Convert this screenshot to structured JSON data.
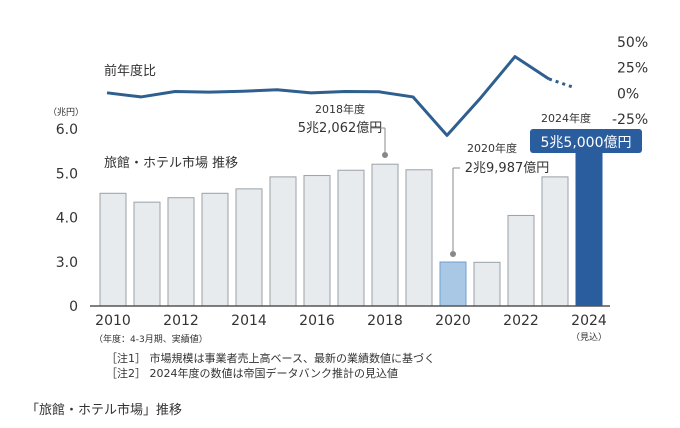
{
  "chart_data": {
    "type": "bar",
    "title": "旅館・ホテル市場 推移",
    "unit_label": "（兆円）",
    "x": [
      2010,
      2011,
      2012,
      2013,
      2014,
      2015,
      2016,
      2017,
      2018,
      2019,
      2020,
      2021,
      2022,
      2023,
      2024
    ],
    "x_tick_labels": [
      "2010",
      "2012",
      "2014",
      "2016",
      "2018",
      "2020",
      "2022",
      "2024"
    ],
    "x_tick_years": [
      2010,
      2012,
      2014,
      2016,
      2018,
      2020,
      2022,
      2024
    ],
    "x_note": "（年度：4-3月期、実績値）",
    "x_note_2024": "（見込）",
    "values": [
      4.55,
      4.35,
      4.45,
      4.55,
      4.65,
      4.92,
      4.95,
      5.07,
      5.2062,
      5.08,
      2.9987,
      2.98,
      4.05,
      4.92,
      5.5
    ],
    "bar_kind": [
      "actual",
      "actual",
      "actual",
      "actual",
      "actual",
      "actual",
      "actual",
      "actual",
      "actual",
      "actual",
      "highlight",
      "actual",
      "actual",
      "actual",
      "forecast"
    ],
    "colors": {
      "actual_fill": "#e8ebee",
      "actual_stroke": "#9aa1a8",
      "highlight_fill": "#a8c8e6",
      "highlight_stroke": "#6f9fcf",
      "forecast_fill": "#2a5d9e",
      "line": "#2e5f8f",
      "badge": "#2a5d9e"
    },
    "ylim": [
      0,
      6.0
    ],
    "y_ticks": [
      "0",
      "3.0",
      "4.0",
      "5.0",
      "6.0"
    ],
    "y_tick_values": [
      0,
      3.0,
      4.0,
      5.0,
      6.0
    ],
    "yoy": {
      "label": "前年度比",
      "values": [
        0.5,
        -3.5,
        1.8,
        1.2,
        2.0,
        3.5,
        0.5,
        1.8,
        1.5,
        -3.5,
        -41.0,
        -4.0,
        35.8,
        14.0,
        6.0
      ],
      "forecast_from_index": 13,
      "ylim": [
        -25,
        50
      ],
      "ticks": [
        "50%",
        "25%",
        "0%",
        "-25%"
      ],
      "tick_values": [
        50,
        25,
        0,
        -25
      ]
    },
    "annotations": {
      "a2018": {
        "year_label": "2018年度",
        "value_label": "5兆2,062億円",
        "year": 2018
      },
      "a2020": {
        "year_label": "2020年度",
        "value_label": "2兆9,987億円",
        "year": 2020
      },
      "a2024": {
        "year_label": "2024年度",
        "value_label": "5兆5,000億円",
        "year": 2024
      }
    },
    "notes": [
      "［注1］ 市場規模は事業者売上高ベース、最新の業績数値に基づく",
      "［注2］ 2024年度の数値は帝国データバンク推計の見込値"
    ]
  },
  "caption": "「旅館・ホテル市場」推移"
}
